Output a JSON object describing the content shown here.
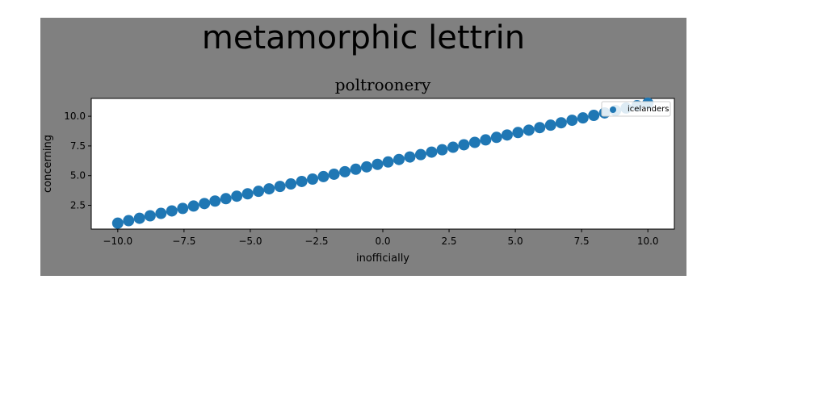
{
  "figure": {
    "title": "metamorphic lettrin",
    "background": "#808080"
  },
  "chart_data": {
    "type": "scatter",
    "title": "poltroonery",
    "xlabel": "inofficially",
    "ylabel": "concerning",
    "xlim": [
      -11.0,
      11.0
    ],
    "ylim": [
      0.5,
      11.5
    ],
    "xticks": [
      -10.0,
      -7.5,
      -5.0,
      -2.5,
      0.0,
      2.5,
      5.0,
      7.5,
      10.0
    ],
    "xtick_labels": [
      "−10.0",
      "−7.5",
      "−5.0",
      "−2.5",
      "0.0",
      "2.5",
      "5.0",
      "7.5",
      "10.0"
    ],
    "yticks": [
      2.5,
      5.0,
      7.5,
      10.0
    ],
    "ytick_labels": [
      "2.5",
      "5.0",
      "7.5",
      "10.0"
    ],
    "grid": false,
    "legend_position": "top-right",
    "series": [
      {
        "name": "icelanders",
        "color": "#1f77b4",
        "x": [
          -10.0,
          -9.59,
          -9.18,
          -8.78,
          -8.37,
          -7.96,
          -7.55,
          -7.14,
          -6.73,
          -6.33,
          -5.92,
          -5.51,
          -5.1,
          -4.69,
          -4.29,
          -3.88,
          -3.47,
          -3.06,
          -2.65,
          -2.24,
          -1.84,
          -1.43,
          -1.02,
          -0.61,
          -0.2,
          0.2,
          0.61,
          1.02,
          1.43,
          1.84,
          2.24,
          2.65,
          3.06,
          3.47,
          3.88,
          4.29,
          4.69,
          5.1,
          5.51,
          5.92,
          6.33,
          6.73,
          7.14,
          7.55,
          7.96,
          8.37,
          8.78,
          9.18,
          9.59,
          10.0
        ],
        "y": [
          1.0,
          1.21,
          1.41,
          1.62,
          1.82,
          2.03,
          2.24,
          2.44,
          2.65,
          2.86,
          3.06,
          3.27,
          3.47,
          3.68,
          3.89,
          4.09,
          4.3,
          4.51,
          4.71,
          4.92,
          5.12,
          5.33,
          5.54,
          5.74,
          5.95,
          6.15,
          6.36,
          6.57,
          6.77,
          6.98,
          7.18,
          7.39,
          7.6,
          7.8,
          8.01,
          8.22,
          8.42,
          8.63,
          8.83,
          9.04,
          9.25,
          9.45,
          9.66,
          9.86,
          10.07,
          10.28,
          10.48,
          10.69,
          10.89,
          11.1
        ]
      }
    ]
  }
}
